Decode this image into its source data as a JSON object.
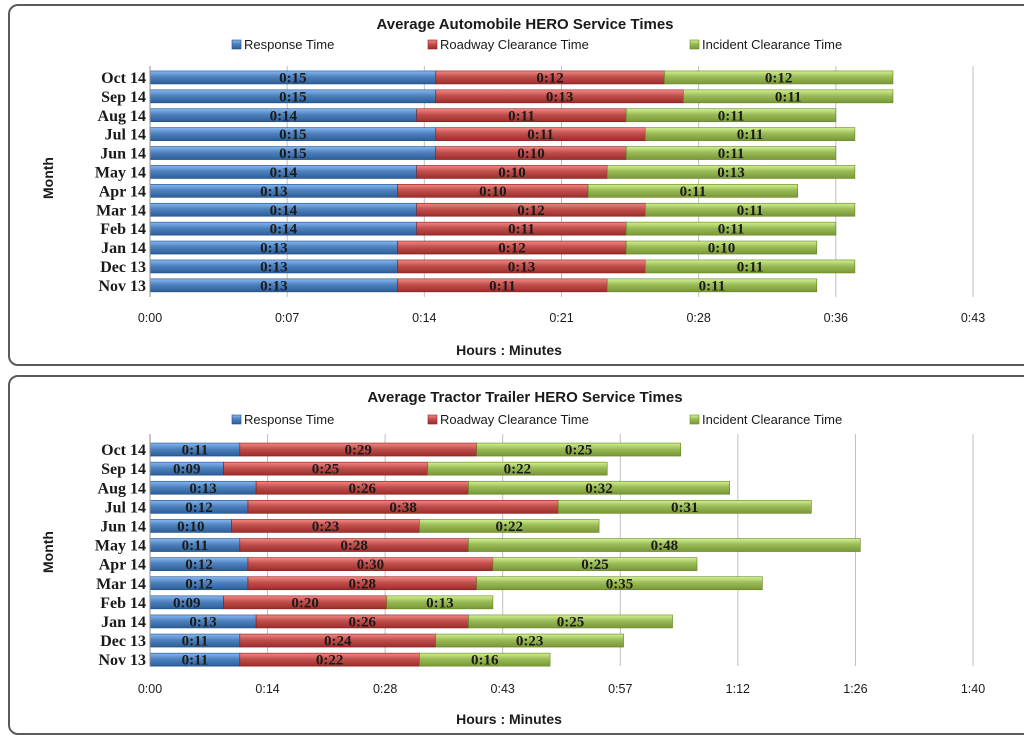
{
  "chart_data": [
    {
      "type": "bar",
      "orientation": "horizontal",
      "stacked": true,
      "title": "Average Automobile HERO Service Times",
      "xlabel": "Hours : Minutes",
      "ylabel": "Month",
      "xlim": [
        0,
        43
      ],
      "x_ticks": [
        "0:00",
        "0:07",
        "0:14",
        "0:21",
        "0:28",
        "0:36",
        "0:43"
      ],
      "x_tick_values": [
        0,
        7.2,
        14.4,
        21.6,
        28.8,
        36,
        43.2
      ],
      "grid": "vertical",
      "legend": "top",
      "categories": [
        "Oct 14",
        "Sep 14",
        "Aug 14",
        "Jul 14",
        "Jun 14",
        "May 14",
        "Apr 14",
        "Mar 14",
        "Feb 14",
        "Jan 14",
        "Dec 13",
        "Nov 13"
      ],
      "series": [
        {
          "name": "Response Time",
          "color": "#4f81bd",
          "values": [
            15,
            15,
            14,
            15,
            15,
            14,
            13,
            14,
            14,
            13,
            13,
            13
          ],
          "labels": [
            "0:15",
            "0:15",
            "0:14",
            "0:15",
            "0:15",
            "0:14",
            "0:13",
            "0:14",
            "0:14",
            "0:13",
            "0:13",
            "0:13"
          ]
        },
        {
          "name": "Roadway Clearance Time",
          "color": "#c0504d",
          "values": [
            12,
            13,
            11,
            11,
            10,
            10,
            10,
            12,
            11,
            12,
            13,
            11
          ],
          "labels": [
            "0:12",
            "0:13",
            "0:11",
            "0:11",
            "0:10",
            "0:10",
            "0:10",
            "0:12",
            "0:11",
            "0:12",
            "0:13",
            "0:11"
          ]
        },
        {
          "name": "Incident Clearance Time",
          "color": "#9bbb59",
          "values": [
            12,
            11,
            11,
            11,
            11,
            13,
            11,
            11,
            11,
            10,
            11,
            11
          ],
          "labels": [
            "0:12",
            "0:11",
            "0:11",
            "0:11",
            "0:11",
            "0:13",
            "0:11",
            "0:11",
            "0:11",
            "0:10",
            "0:11",
            "0:11"
          ]
        }
      ]
    },
    {
      "type": "bar",
      "orientation": "horizontal",
      "stacked": true,
      "title": "Average Tractor Trailer HERO Service Times",
      "xlabel": "Hours : Minutes",
      "ylabel": "Month",
      "xlim": [
        0,
        100
      ],
      "x_ticks": [
        "0:00",
        "0:14",
        "0:28",
        "0:43",
        "0:57",
        "1:12",
        "1:26",
        "1:40"
      ],
      "x_tick_values": [
        0,
        14.4,
        28.8,
        43.2,
        57.6,
        72,
        86.4,
        100.8
      ],
      "grid": "vertical",
      "legend": "top",
      "categories": [
        "Oct 14",
        "Sep 14",
        "Aug 14",
        "Jul 14",
        "Jun 14",
        "May 14",
        "Apr 14",
        "Mar 14",
        "Feb 14",
        "Jan 14",
        "Dec 13",
        "Nov 13"
      ],
      "series": [
        {
          "name": "Response Time",
          "color": "#4f81bd",
          "values": [
            11,
            9,
            13,
            12,
            10,
            11,
            12,
            12,
            9,
            13,
            11,
            11
          ],
          "labels": [
            "0:11",
            "0:09",
            "0:13",
            "0:12",
            "0:10",
            "0:11",
            "0:12",
            "0:12",
            "0:09",
            "0:13",
            "0:11",
            "0:11"
          ]
        },
        {
          "name": "Roadway Clearance Time",
          "color": "#c0504d",
          "values": [
            29,
            25,
            26,
            38,
            23,
            28,
            30,
            28,
            20,
            26,
            24,
            22
          ],
          "labels": [
            "0:29",
            "0:25",
            "0:26",
            "0:38",
            "0:23",
            "0:28",
            "0:30",
            "0:28",
            "0:20",
            "0:26",
            "0:24",
            "0:22"
          ]
        },
        {
          "name": "Incident Clearance Time",
          "color": "#9bbb59",
          "values": [
            25,
            22,
            32,
            31,
            22,
            48,
            25,
            35,
            13,
            25,
            23,
            16
          ],
          "labels": [
            "0:25",
            "0:22",
            "0:32",
            "0:31",
            "0:22",
            "0:48",
            "0:25",
            "0:35",
            "0:13",
            "0:25",
            "0:23",
            "0:16"
          ]
        }
      ]
    }
  ]
}
